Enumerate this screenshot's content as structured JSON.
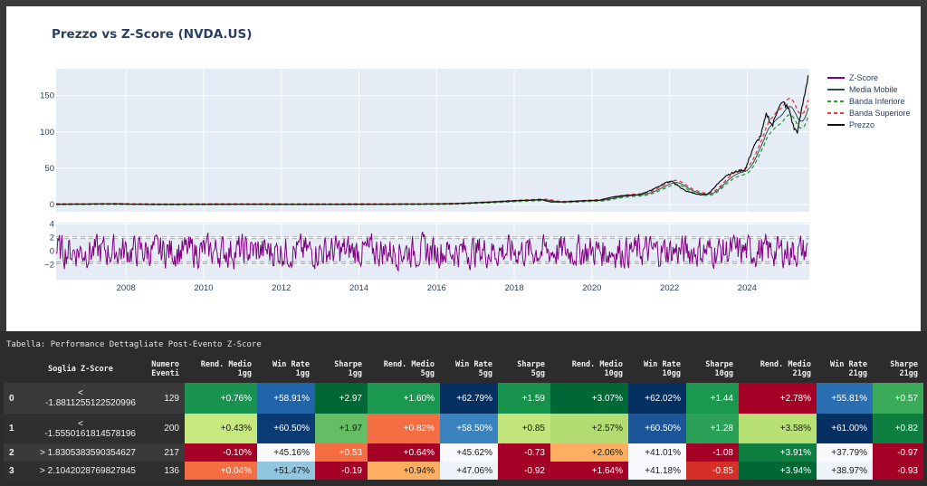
{
  "chart_data": {
    "type": "line",
    "title": "Prezzo vs Z-Score (NVDA.US)",
    "x_range": [
      2006.2,
      2025.6
    ],
    "x_ticks": [
      "2008",
      "2010",
      "2012",
      "2014",
      "2016",
      "2018",
      "2020",
      "2022",
      "2024"
    ],
    "x_tick_values": [
      2008,
      2010,
      2012,
      2014,
      2016,
      2018,
      2020,
      2022,
      2024
    ],
    "price_panel": {
      "y_range": [
        -10,
        187
      ],
      "y_ticks": [
        "0",
        "50",
        "100",
        "150"
      ],
      "y_tick_values": [
        0,
        50,
        100,
        150
      ],
      "series": [
        {
          "name": "Media Mobile",
          "color": "#2f4f4f",
          "style": "solid"
        },
        {
          "name": "Banda Inferiore",
          "color": "#2ca02c",
          "style": "dash"
        },
        {
          "name": "Banda Superiore",
          "color": "#e8383b",
          "style": "dash"
        },
        {
          "name": "Prezzo",
          "color": "#111111",
          "style": "solid"
        }
      ],
      "price_points": [
        [
          2006.2,
          0.5
        ],
        [
          2007.0,
          0.6
        ],
        [
          2007.5,
          0.9
        ],
        [
          2008.0,
          0.6
        ],
        [
          2008.5,
          0.3
        ],
        [
          2009.0,
          0.2
        ],
        [
          2010.0,
          0.4
        ],
        [
          2011.0,
          0.5
        ],
        [
          2012.0,
          0.35
        ],
        [
          2013.0,
          0.35
        ],
        [
          2014.0,
          0.45
        ],
        [
          2015.0,
          0.55
        ],
        [
          2015.6,
          0.6
        ],
        [
          2016.0,
          0.8
        ],
        [
          2016.5,
          1.3
        ],
        [
          2017.0,
          2.5
        ],
        [
          2017.5,
          3.8
        ],
        [
          2018.0,
          5.2
        ],
        [
          2018.7,
          6.8
        ],
        [
          2018.95,
          3.4
        ],
        [
          2019.3,
          3.8
        ],
        [
          2019.8,
          5.2
        ],
        [
          2020.2,
          6.0
        ],
        [
          2020.5,
          10.0
        ],
        [
          2020.9,
          13.0
        ],
        [
          2021.2,
          13.5
        ],
        [
          2021.5,
          19.0
        ],
        [
          2021.9,
          30.0
        ],
        [
          2022.05,
          32.0
        ],
        [
          2022.4,
          19.0
        ],
        [
          2022.8,
          13.0
        ],
        [
          2023.0,
          15.0
        ],
        [
          2023.2,
          26.0
        ],
        [
          2023.45,
          40.0
        ],
        [
          2023.7,
          45.0
        ],
        [
          2023.95,
          48.0
        ],
        [
          2024.15,
          78.0
        ],
        [
          2024.35,
          95.0
        ],
        [
          2024.5,
          125.0
        ],
        [
          2024.65,
          108.0
        ],
        [
          2024.8,
          135.0
        ],
        [
          2024.95,
          140.0
        ],
        [
          2025.1,
          128.0
        ],
        [
          2025.2,
          105.0
        ],
        [
          2025.3,
          100.0
        ],
        [
          2025.4,
          130.0
        ],
        [
          2025.5,
          158.0
        ],
        [
          2025.57,
          178.0
        ]
      ]
    },
    "zscore_panel": {
      "y_range": [
        -4.2,
        4.2
      ],
      "y_ticks": [
        "4",
        "2",
        "0",
        "−2"
      ],
      "y_tick_values": [
        4,
        2,
        0,
        -2
      ],
      "reference_lines": [
        2.1042,
        1.8305,
        -1.555,
        -1.8811
      ],
      "series": [
        {
          "name": "Z-Score",
          "color": "#800080",
          "style": "solid"
        }
      ]
    },
    "legend": {
      "position": "right",
      "entries": [
        {
          "name": "Z-Score",
          "color": "#800080",
          "dash": false
        },
        {
          "name": "Media Mobile",
          "color": "#2f4f4f",
          "dash": false
        },
        {
          "name": "Banda Inferiore",
          "color": "#2ca02c",
          "dash": true
        },
        {
          "name": "Banda Superiore",
          "color": "#e8383b",
          "dash": true
        },
        {
          "name": "Prezzo",
          "color": "#111111",
          "dash": false
        }
      ]
    }
  },
  "table": {
    "caption": "Tabella: Performance Dettagliate Post-Evento Z-Score",
    "headers": [
      "",
      "Soglia Z-Score",
      "Numero\nEventi",
      "Rend. Medio\n1gg",
      "Win Rate\n1gg",
      "Sharpe\n1gg",
      "Rend. Medio\n5gg",
      "Win Rate\n5gg",
      "Sharpe\n5gg",
      "Rend. Medio\n10gg",
      "Win Rate\n10gg",
      "Sharpe\n10gg",
      "Rend. Medio\n21gg",
      "Win Rate\n21gg",
      "Sharpe\n21gg"
    ],
    "rows": [
      {
        "index": "0",
        "threshold_prefix": "<",
        "threshold": "-1.8811255122520996",
        "count": "129",
        "cells": [
          {
            "text": "+0.76%",
            "bg": "#199450",
            "fg": "#ffffff"
          },
          {
            "text": "+58.91%",
            "bg": "#2064aa",
            "fg": "#ffffff"
          },
          {
            "text": "+2.97",
            "bg": "#006837",
            "fg": "#ffffff"
          },
          {
            "text": "+1.60%",
            "bg": "#1a9850",
            "fg": "#ffffff"
          },
          {
            "text": "+62.79%",
            "bg": "#053061",
            "fg": "#ffffff"
          },
          {
            "text": "+1.59",
            "bg": "#17924d",
            "fg": "#ffffff"
          },
          {
            "text": "+3.07%",
            "bg": "#006837",
            "fg": "#ffffff"
          },
          {
            "text": "+62.02%",
            "bg": "#053061",
            "fg": "#ffffff"
          },
          {
            "text": "+1.44",
            "bg": "#1a9850",
            "fg": "#ffffff"
          },
          {
            "text": "+2.78%",
            "bg": "#a50026",
            "fg": "#ffffff"
          },
          {
            "text": "+55.81%",
            "bg": "#2b6fb3",
            "fg": "#ffffff"
          },
          {
            "text": "+0.57",
            "bg": "#3aab58",
            "fg": "#ffffff"
          }
        ]
      },
      {
        "index": "1",
        "threshold_prefix": "<",
        "threshold": "-1.5550161814578196",
        "count": "200",
        "cells": [
          {
            "text": "+0.43%",
            "bg": "#c7e77f",
            "fg": "#1a1a1a"
          },
          {
            "text": "+60.50%",
            "bg": "#0b3b73",
            "fg": "#ffffff"
          },
          {
            "text": "+1.97",
            "bg": "#66bd63",
            "fg": "#1a1a1a"
          },
          {
            "text": "+0.82%",
            "bg": "#f46d43",
            "fg": "#ffffff"
          },
          {
            "text": "+58.50%",
            "bg": "#3b83be",
            "fg": "#ffffff"
          },
          {
            "text": "+0.85",
            "bg": "#c2e47b",
            "fg": "#1a1a1a"
          },
          {
            "text": "+2.57%",
            "bg": "#b1dc72",
            "fg": "#1a1a1a"
          },
          {
            "text": "+60.50%",
            "bg": "#1c5598",
            "fg": "#ffffff"
          },
          {
            "text": "+1.28",
            "bg": "#2aa156",
            "fg": "#ffffff"
          },
          {
            "text": "+3.58%",
            "bg": "#b7e075",
            "fg": "#1a1a1a"
          },
          {
            "text": "+61.00%",
            "bg": "#053061",
            "fg": "#ffffff"
          },
          {
            "text": "+0.82",
            "bg": "#0e7f40",
            "fg": "#ffffff"
          }
        ]
      },
      {
        "index": "2",
        "threshold_prefix": "",
        "threshold": "> 1.8305383590354627",
        "count": "217",
        "cells": [
          {
            "text": "-0.10%",
            "bg": "#a50026",
            "fg": "#ffffff"
          },
          {
            "text": "+45.16%",
            "bg": "#f7f9fd",
            "fg": "#1a1a1a"
          },
          {
            "text": "+0.53",
            "bg": "#f46d43",
            "fg": "#ffffff"
          },
          {
            "text": "+0.64%",
            "bg": "#a50026",
            "fg": "#ffffff"
          },
          {
            "text": "+45.62%",
            "bg": "#f7f9fd",
            "fg": "#1a1a1a"
          },
          {
            "text": "-0.73",
            "bg": "#a50026",
            "fg": "#ffffff"
          },
          {
            "text": "+2.06%",
            "bg": "#fdae61",
            "fg": "#1a1a1a"
          },
          {
            "text": "+41.01%",
            "bg": "#f7f9fd",
            "fg": "#1a1a1a"
          },
          {
            "text": "-1.08",
            "bg": "#a50026",
            "fg": "#ffffff"
          },
          {
            "text": "+3.91%",
            "bg": "#0e7f40",
            "fg": "#ffffff"
          },
          {
            "text": "+37.79%",
            "bg": "#f7f9fd",
            "fg": "#1a1a1a"
          },
          {
            "text": "-0.97",
            "bg": "#a50026",
            "fg": "#ffffff"
          }
        ]
      },
      {
        "index": "3",
        "threshold_prefix": "",
        "threshold": "> 2.1042028769827845",
        "count": "136",
        "cells": [
          {
            "text": "+0.04%",
            "bg": "#f46d43",
            "fg": "#ffffff"
          },
          {
            "text": "+51.47%",
            "bg": "#92c5de",
            "fg": "#1a1a1a"
          },
          {
            "text": "-0.19",
            "bg": "#a50026",
            "fg": "#ffffff"
          },
          {
            "text": "+0.94%",
            "bg": "#fdae61",
            "fg": "#1a1a1a"
          },
          {
            "text": "+47.06%",
            "bg": "#eef3fa",
            "fg": "#1a1a1a"
          },
          {
            "text": "-0.92",
            "bg": "#a50026",
            "fg": "#ffffff"
          },
          {
            "text": "+1.64%",
            "bg": "#a50026",
            "fg": "#ffffff"
          },
          {
            "text": "+41.18%",
            "bg": "#f7f9fd",
            "fg": "#1a1a1a"
          },
          {
            "text": "-0.85",
            "bg": "#d62f27",
            "fg": "#ffffff"
          },
          {
            "text": "+3.94%",
            "bg": "#006837",
            "fg": "#ffffff"
          },
          {
            "text": "+38.97%",
            "bg": "#eef3fa",
            "fg": "#1a1a1a"
          },
          {
            "text": "-0.93",
            "bg": "#a50026",
            "fg": "#ffffff"
          }
        ]
      }
    ]
  }
}
